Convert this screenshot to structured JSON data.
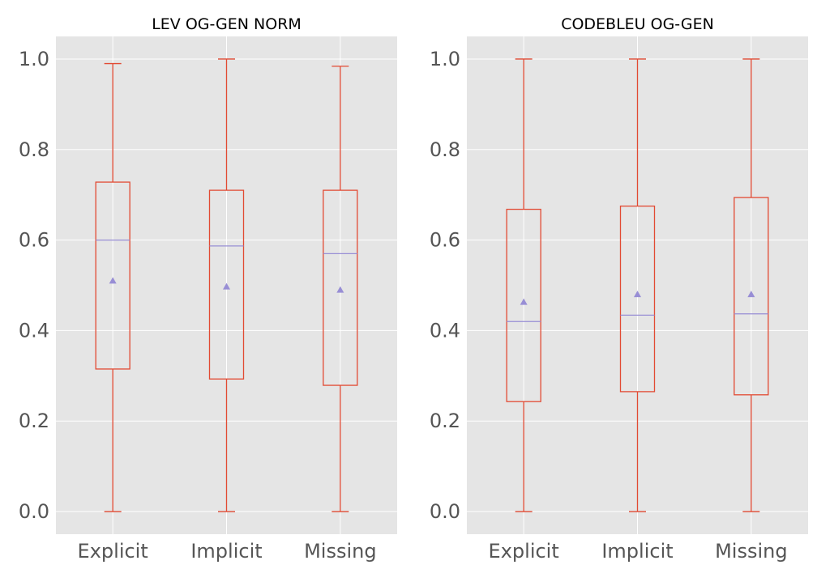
{
  "chart_data": [
    {
      "type": "box",
      "title": "LEV OG-GEN NORM",
      "categories": [
        "Explicit",
        "Implicit",
        "Missing"
      ],
      "ylim": [
        -0.05,
        1.05
      ],
      "yticks": [
        0.0,
        0.2,
        0.4,
        0.6,
        0.8,
        1.0
      ],
      "ytick_labels": [
        "0.0",
        "0.2",
        "0.4",
        "0.6",
        "0.8",
        "1.0"
      ],
      "grid": true,
      "boxes": [
        {
          "name": "Explicit",
          "whisker_low": 0.0,
          "q1": 0.315,
          "median": 0.6,
          "q3": 0.728,
          "whisker_high": 0.99,
          "mean": 0.51
        },
        {
          "name": "Implicit",
          "whisker_low": 0.0,
          "q1": 0.293,
          "median": 0.587,
          "q3": 0.71,
          "whisker_high": 1.0,
          "mean": 0.497
        },
        {
          "name": "Missing",
          "whisker_low": 0.0,
          "q1": 0.279,
          "median": 0.57,
          "q3": 0.71,
          "whisker_high": 0.984,
          "mean": 0.49
        }
      ]
    },
    {
      "type": "box",
      "title": "CODEBLEU OG-GEN",
      "categories": [
        "Explicit",
        "Implicit",
        "Missing"
      ],
      "ylim": [
        -0.05,
        1.05
      ],
      "yticks": [
        0.0,
        0.2,
        0.4,
        0.6,
        0.8,
        1.0
      ],
      "ytick_labels": [
        "0.0",
        "0.2",
        "0.4",
        "0.6",
        "0.8",
        "1.0"
      ],
      "grid": true,
      "boxes": [
        {
          "name": "Explicit",
          "whisker_low": 0.0,
          "q1": 0.243,
          "median": 0.42,
          "q3": 0.668,
          "whisker_high": 1.0,
          "mean": 0.463
        },
        {
          "name": "Implicit",
          "whisker_low": 0.0,
          "q1": 0.265,
          "median": 0.434,
          "q3": 0.675,
          "whisker_high": 1.0,
          "mean": 0.48
        },
        {
          "name": "Missing",
          "whisker_low": 0.0,
          "q1": 0.258,
          "median": 0.437,
          "q3": 0.694,
          "whisker_high": 1.0,
          "mean": 0.48
        }
      ]
    }
  ],
  "colors": {
    "plot_background": "#e5e5e5",
    "grid": "#ffffff",
    "box": "#e24a33",
    "median": "#988ed5",
    "mean_marker": "#988ed5",
    "tick_text": "#555555",
    "title_text": "#000000"
  }
}
